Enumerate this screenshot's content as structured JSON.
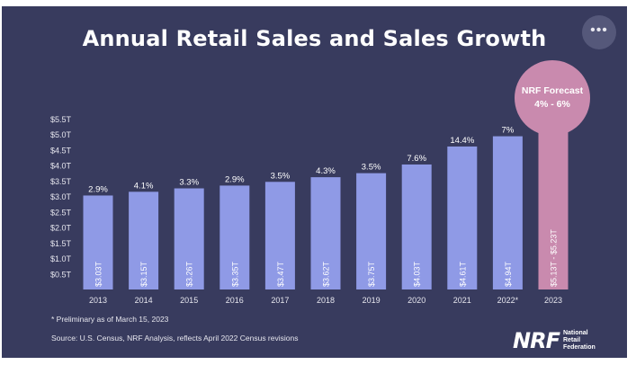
{
  "title": "Annual Retail Sales and Sales Growth",
  "more_button_label": "•••",
  "forecast_bubble": {
    "line1": "NRF Forecast",
    "line2": "4% - 6%"
  },
  "footnote": "* Preliminary as of March 15, 2023",
  "source": "Source: U.S. Census, NRF Analysis, reflects April 2022 Census revisions",
  "logo": {
    "mark": "NRF",
    "line1": "National",
    "line2": "Retail",
    "line3": "Federation"
  },
  "colors": {
    "background": "#383b5e",
    "bar": "#8f9ae6",
    "forecast_bar": "#c98aae",
    "text": "#ffffff"
  },
  "chart_data": {
    "type": "bar",
    "title": "Annual Retail Sales and Sales Growth",
    "categories": [
      "2013",
      "2014",
      "2015",
      "2016",
      "2017",
      "2018",
      "2019",
      "2020",
      "2021",
      "2022*",
      "2023"
    ],
    "values": [
      3.03,
      3.15,
      3.26,
      3.35,
      3.47,
      3.62,
      3.75,
      4.03,
      4.61,
      4.94,
      5.18
    ],
    "bar_labels": [
      "$3.03T",
      "$3.15T",
      "$3.26T",
      "$3.35T",
      "$3.47T",
      "$3.62T",
      "$3.75T",
      "$4.03T",
      "$4.61T",
      "$4.94T",
      "$5.13T - $5.23T"
    ],
    "growth_labels": [
      "2.9%",
      "4.1%",
      "3.3%",
      "2.9%",
      "3.5%",
      "4.3%",
      "3.5%",
      "7.6%",
      "14.4%",
      "7%",
      ""
    ],
    "y_ticks": [
      "$0.5T",
      "$1.0T",
      "$1.5T",
      "$2.0T",
      "$2.5T",
      "$3.0T",
      "$3.5T",
      "$4.0T",
      "$4.5T",
      "$5.0T",
      "$5.5T"
    ],
    "ylim": [
      0,
      5.5
    ],
    "forecast_range": [
      5.13,
      5.23
    ],
    "grid": false
  }
}
